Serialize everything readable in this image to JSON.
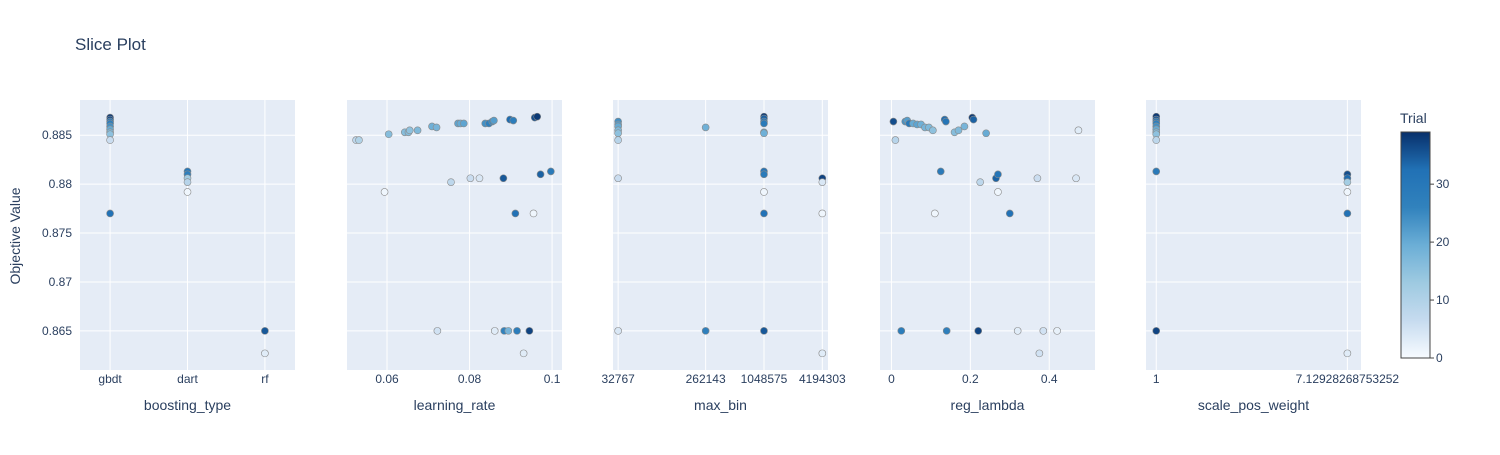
{
  "chart_data": {
    "type": "scatter",
    "title": "Slice Plot",
    "ylabel": "Objective Value",
    "ylim": [
      0.861,
      0.8886
    ],
    "y_ticks": [
      0.865,
      0.87,
      0.875,
      0.88,
      0.885
    ],
    "y_tick_labels": [
      "0.865",
      "0.87",
      "0.875",
      "0.88",
      "0.885"
    ],
    "colorbar": {
      "title": "Trial",
      "range": [
        0,
        39
      ],
      "ticks": [
        0,
        10,
        20,
        30
      ],
      "tick_labels": [
        "0",
        "10",
        "20",
        "30"
      ],
      "colorscale": [
        "#f7fbff",
        "#c6dbef",
        "#9ecae1",
        "#6baed6",
        "#3182bd",
        "#2171b5",
        "#08306b"
      ]
    },
    "panels": [
      {
        "xlabel": "boosting_type",
        "x_type": "category",
        "categories": [
          "gbdt",
          "dart",
          "rf"
        ],
        "x_tick_labels": [
          "gbdt",
          "dart",
          "rf"
        ],
        "points": [
          {
            "x": "gbdt",
            "y": 0.8868,
            "trial": 38
          },
          {
            "x": "gbdt",
            "y": 0.8866,
            "trial": 36
          },
          {
            "x": "gbdt",
            "y": 0.8864,
            "trial": 31
          },
          {
            "x": "gbdt",
            "y": 0.8862,
            "trial": 27
          },
          {
            "x": "gbdt",
            "y": 0.8859,
            "trial": 24
          },
          {
            "x": "gbdt",
            "y": 0.8856,
            "trial": 20
          },
          {
            "x": "gbdt",
            "y": 0.8853,
            "trial": 17
          },
          {
            "x": "gbdt",
            "y": 0.8851,
            "trial": 15
          },
          {
            "x": "gbdt",
            "y": 0.8845,
            "trial": 6
          },
          {
            "x": "gbdt",
            "y": 0.877,
            "trial": 32
          },
          {
            "x": "dart",
            "y": 0.8813,
            "trial": 30
          },
          {
            "x": "dart",
            "y": 0.881,
            "trial": 27
          },
          {
            "x": "dart",
            "y": 0.8806,
            "trial": 12
          },
          {
            "x": "dart",
            "y": 0.8802,
            "trial": 9
          },
          {
            "x": "dart",
            "y": 0.8792,
            "trial": 1
          },
          {
            "x": "rf",
            "y": 0.865,
            "trial": 35
          },
          {
            "x": "rf",
            "y": 0.8627,
            "trial": 3
          }
        ]
      },
      {
        "xlabel": "learning_rate",
        "x_type": "linear",
        "xlim": [
          0.0503,
          0.1024
        ],
        "x_ticks": [
          0.06,
          0.08,
          0.1
        ],
        "x_tick_labels": [
          "0.06",
          "0.08",
          "0.1"
        ],
        "points": [
          {
            "x": 0.0525,
            "y": 0.8845,
            "trial": 8
          },
          {
            "x": 0.0532,
            "y": 0.8845,
            "trial": 10
          },
          {
            "x": 0.0594,
            "y": 0.8792,
            "trial": 1
          },
          {
            "x": 0.0604,
            "y": 0.8851,
            "trial": 16
          },
          {
            "x": 0.0643,
            "y": 0.8853,
            "trial": 16
          },
          {
            "x": 0.0652,
            "y": 0.8853,
            "trial": 16
          },
          {
            "x": 0.0655,
            "y": 0.8855,
            "trial": 15
          },
          {
            "x": 0.0674,
            "y": 0.8855,
            "trial": 17
          },
          {
            "x": 0.0709,
            "y": 0.8859,
            "trial": 19
          },
          {
            "x": 0.072,
            "y": 0.8858,
            "trial": 18
          },
          {
            "x": 0.0722,
            "y": 0.865,
            "trial": 5
          },
          {
            "x": 0.0755,
            "y": 0.8802,
            "trial": 8
          },
          {
            "x": 0.0772,
            "y": 0.8862,
            "trial": 21
          },
          {
            "x": 0.0778,
            "y": 0.8862,
            "trial": 20
          },
          {
            "x": 0.0786,
            "y": 0.8862,
            "trial": 21
          },
          {
            "x": 0.0802,
            "y": 0.8806,
            "trial": 6
          },
          {
            "x": 0.0824,
            "y": 0.8806,
            "trial": 4
          },
          {
            "x": 0.0838,
            "y": 0.8862,
            "trial": 24
          },
          {
            "x": 0.0847,
            "y": 0.8862,
            "trial": 27
          },
          {
            "x": 0.0855,
            "y": 0.8864,
            "trial": 25
          },
          {
            "x": 0.0859,
            "y": 0.8865,
            "trial": 22
          },
          {
            "x": 0.0861,
            "y": 0.865,
            "trial": 3
          },
          {
            "x": 0.0882,
            "y": 0.8806,
            "trial": 35
          },
          {
            "x": 0.0884,
            "y": 0.865,
            "trial": 26
          },
          {
            "x": 0.0894,
            "y": 0.865,
            "trial": 18
          },
          {
            "x": 0.0898,
            "y": 0.8866,
            "trial": 33
          },
          {
            "x": 0.0906,
            "y": 0.8865,
            "trial": 28
          },
          {
            "x": 0.0911,
            "y": 0.877,
            "trial": 32
          },
          {
            "x": 0.0915,
            "y": 0.865,
            "trial": 28
          },
          {
            "x": 0.0931,
            "y": 0.8627,
            "trial": 3
          },
          {
            "x": 0.0945,
            "y": 0.865,
            "trial": 37
          },
          {
            "x": 0.0955,
            "y": 0.877,
            "trial": 1
          },
          {
            "x": 0.0958,
            "y": 0.8868,
            "trial": 36
          },
          {
            "x": 0.0964,
            "y": 0.8869,
            "trial": 38
          },
          {
            "x": 0.0972,
            "y": 0.881,
            "trial": 34
          },
          {
            "x": 0.0997,
            "y": 0.8813,
            "trial": 29
          }
        ]
      },
      {
        "xlabel": "max_bin",
        "x_type": "log",
        "xlim": [
          29000,
          4800000
        ],
        "x_ticks": [
          32767,
          262143,
          1048575,
          4194303
        ],
        "x_tick_labels": [
          "32767",
          "262143",
          "1048575",
          "4194303"
        ],
        "points": [
          {
            "x": 32767,
            "y": 0.8864,
            "trial": 24
          },
          {
            "x": 32767,
            "y": 0.8861,
            "trial": 22
          },
          {
            "x": 32767,
            "y": 0.8859,
            "trial": 20
          },
          {
            "x": 32767,
            "y": 0.8855,
            "trial": 17
          },
          {
            "x": 32767,
            "y": 0.8852,
            "trial": 15
          },
          {
            "x": 32767,
            "y": 0.8845,
            "trial": 9
          },
          {
            "x": 32767,
            "y": 0.8806,
            "trial": 6
          },
          {
            "x": 32767,
            "y": 0.865,
            "trial": 4
          },
          {
            "x": 262143,
            "y": 0.8858,
            "trial": 19
          },
          {
            "x": 262143,
            "y": 0.865,
            "trial": 27
          },
          {
            "x": 1048575,
            "y": 0.8869,
            "trial": 38
          },
          {
            "x": 1048575,
            "y": 0.8867,
            "trial": 34
          },
          {
            "x": 1048575,
            "y": 0.8864,
            "trial": 31
          },
          {
            "x": 1048575,
            "y": 0.8862,
            "trial": 29
          },
          {
            "x": 1048575,
            "y": 0.8853,
            "trial": 21
          },
          {
            "x": 1048575,
            "y": 0.8852,
            "trial": 19
          },
          {
            "x": 1048575,
            "y": 0.8813,
            "trial": 31
          },
          {
            "x": 1048575,
            "y": 0.881,
            "trial": 29
          },
          {
            "x": 1048575,
            "y": 0.8792,
            "trial": 1
          },
          {
            "x": 1048575,
            "y": 0.877,
            "trial": 32
          },
          {
            "x": 1048575,
            "y": 0.865,
            "trial": 35
          },
          {
            "x": 4194303,
            "y": 0.8806,
            "trial": 37
          },
          {
            "x": 4194303,
            "y": 0.8802,
            "trial": 4
          },
          {
            "x": 4194303,
            "y": 0.877,
            "trial": 1
          },
          {
            "x": 4194303,
            "y": 0.8627,
            "trial": 3
          }
        ]
      },
      {
        "xlabel": "reg_lambda",
        "x_type": "linear",
        "xlim": [
          -0.029,
          0.516
        ],
        "x_ticks": [
          0,
          0.2,
          0.4
        ],
        "x_tick_labels": [
          "0",
          "0.2",
          "0.4"
        ],
        "points": [
          {
            "x": 0.005,
            "y": 0.8864,
            "trial": 36
          },
          {
            "x": 0.01,
            "y": 0.8845,
            "trial": 9
          },
          {
            "x": 0.025,
            "y": 0.865,
            "trial": 28
          },
          {
            "x": 0.035,
            "y": 0.8864,
            "trial": 24
          },
          {
            "x": 0.04,
            "y": 0.8865,
            "trial": 22
          },
          {
            "x": 0.045,
            "y": 0.8862,
            "trial": 30
          },
          {
            "x": 0.055,
            "y": 0.8862,
            "trial": 20
          },
          {
            "x": 0.065,
            "y": 0.8861,
            "trial": 21
          },
          {
            "x": 0.075,
            "y": 0.8861,
            "trial": 19
          },
          {
            "x": 0.085,
            "y": 0.8858,
            "trial": 18
          },
          {
            "x": 0.095,
            "y": 0.8858,
            "trial": 17
          },
          {
            "x": 0.105,
            "y": 0.8855,
            "trial": 15
          },
          {
            "x": 0.11,
            "y": 0.877,
            "trial": 1
          },
          {
            "x": 0.125,
            "y": 0.8813,
            "trial": 29
          },
          {
            "x": 0.135,
            "y": 0.8866,
            "trial": 33
          },
          {
            "x": 0.138,
            "y": 0.8864,
            "trial": 31
          },
          {
            "x": 0.14,
            "y": 0.865,
            "trial": 27
          },
          {
            "x": 0.16,
            "y": 0.8853,
            "trial": 16
          },
          {
            "x": 0.17,
            "y": 0.8855,
            "trial": 17
          },
          {
            "x": 0.185,
            "y": 0.8859,
            "trial": 18
          },
          {
            "x": 0.205,
            "y": 0.8868,
            "trial": 38
          },
          {
            "x": 0.208,
            "y": 0.8866,
            "trial": 34
          },
          {
            "x": 0.22,
            "y": 0.865,
            "trial": 37
          },
          {
            "x": 0.225,
            "y": 0.8802,
            "trial": 8
          },
          {
            "x": 0.24,
            "y": 0.8852,
            "trial": 20
          },
          {
            "x": 0.265,
            "y": 0.8806,
            "trial": 34
          },
          {
            "x": 0.27,
            "y": 0.881,
            "trial": 31
          },
          {
            "x": 0.27,
            "y": 0.8792,
            "trial": 1
          },
          {
            "x": 0.3,
            "y": 0.877,
            "trial": 32
          },
          {
            "x": 0.32,
            "y": 0.865,
            "trial": 3
          },
          {
            "x": 0.37,
            "y": 0.8806,
            "trial": 6
          },
          {
            "x": 0.375,
            "y": 0.8627,
            "trial": 5
          },
          {
            "x": 0.385,
            "y": 0.865,
            "trial": 5
          },
          {
            "x": 0.42,
            "y": 0.865,
            "trial": 2
          },
          {
            "x": 0.468,
            "y": 0.8806,
            "trial": 4
          },
          {
            "x": 0.474,
            "y": 0.8855,
            "trial": 3
          }
        ]
      },
      {
        "xlabel": "scale_pos_weight",
        "x_type": "log",
        "xlim": [
          0.9,
          8.2
        ],
        "x_ticks": [
          1,
          7.12928268753252
        ],
        "x_tick_labels": [
          "1",
          "7.12928268753252"
        ],
        "points": [
          {
            "x": 1,
            "y": 0.8869,
            "trial": 38
          },
          {
            "x": 1,
            "y": 0.8866,
            "trial": 35
          },
          {
            "x": 1,
            "y": 0.8864,
            "trial": 31
          },
          {
            "x": 1,
            "y": 0.8862,
            "trial": 27
          },
          {
            "x": 1,
            "y": 0.8859,
            "trial": 24
          },
          {
            "x": 1,
            "y": 0.8856,
            "trial": 20
          },
          {
            "x": 1,
            "y": 0.8853,
            "trial": 17
          },
          {
            "x": 1,
            "y": 0.8851,
            "trial": 15
          },
          {
            "x": 1,
            "y": 0.8845,
            "trial": 8
          },
          {
            "x": 1,
            "y": 0.8813,
            "trial": 29
          },
          {
            "x": 1,
            "y": 0.865,
            "trial": 37
          },
          {
            "x": 7.12928268753252,
            "y": 0.881,
            "trial": 36
          },
          {
            "x": 7.12928268753252,
            "y": 0.8806,
            "trial": 33
          },
          {
            "x": 7.12928268753252,
            "y": 0.8802,
            "trial": 12
          },
          {
            "x": 7.12928268753252,
            "y": 0.8792,
            "trial": 1
          },
          {
            "x": 7.12928268753252,
            "y": 0.877,
            "trial": 32
          },
          {
            "x": 7.12928268753252,
            "y": 0.8627,
            "trial": 3
          }
        ]
      }
    ]
  }
}
